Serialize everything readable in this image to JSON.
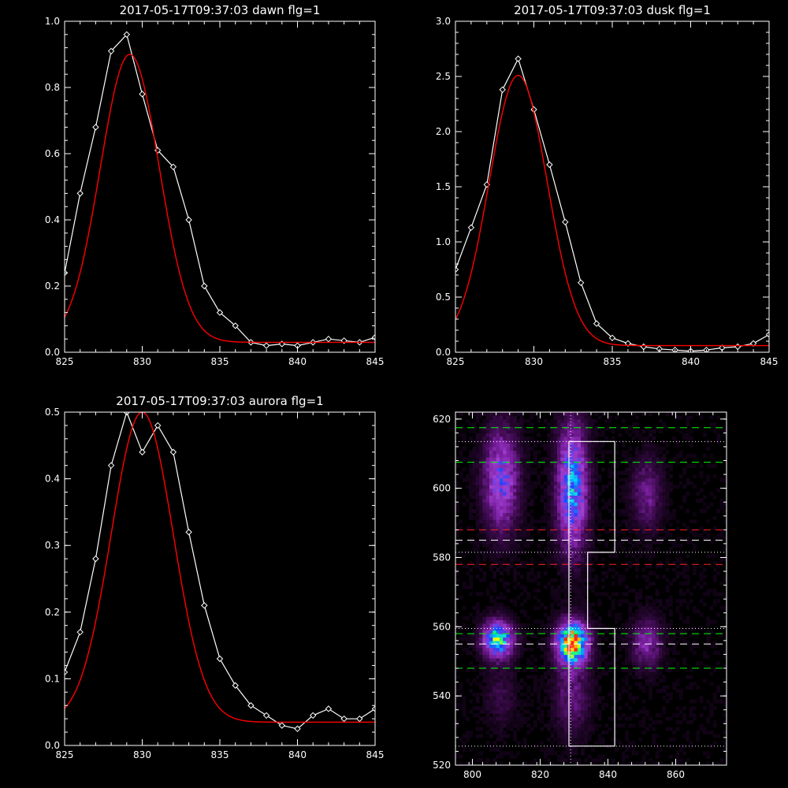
{
  "chart_data": [
    {
      "type": "line",
      "title": "2017-05-17T09:37:03 dawn flg=1",
      "xlim": [
        825,
        845
      ],
      "ylim": [
        0,
        1.0
      ],
      "x_ticks": [
        "825",
        "830",
        "835",
        "840",
        "845"
      ],
      "y_ticks": [
        "0.0",
        "0.2",
        "0.4",
        "0.6",
        "0.8",
        "1.0"
      ],
      "grid": false,
      "series": [
        {
          "style": "data-diamonds",
          "color": "#ffffff",
          "points": [
            [
              825,
              0.24
            ],
            [
              826,
              0.48
            ],
            [
              827,
              0.68
            ],
            [
              828,
              0.91
            ],
            [
              829,
              0.96
            ],
            [
              830,
              0.78
            ],
            [
              831,
              0.61
            ],
            [
              832,
              0.56
            ],
            [
              833,
              0.4
            ],
            [
              834,
              0.2
            ],
            [
              835,
              0.12
            ],
            [
              836,
              0.08
            ],
            [
              837,
              0.03
            ],
            [
              838,
              0.02
            ],
            [
              839,
              0.025
            ],
            [
              840,
              0.02
            ],
            [
              841,
              0.03
            ],
            [
              842,
              0.04
            ],
            [
              843,
              0.035
            ],
            [
              844,
              0.03
            ],
            [
              845,
              0.045
            ]
          ]
        },
        {
          "style": "fit",
          "color": "#ff0000",
          "gaussian": {
            "amp": 0.87,
            "center": 829.2,
            "sigma": 1.9,
            "offset": 0.03
          }
        }
      ]
    },
    {
      "type": "line",
      "title": "2017-05-17T09:37:03 dusk flg=1",
      "xlim": [
        825,
        845
      ],
      "ylim": [
        0,
        3.0
      ],
      "x_ticks": [
        "825",
        "830",
        "835",
        "840",
        "845"
      ],
      "y_ticks": [
        "0.0",
        "0.5",
        "1.0",
        "1.5",
        "2.0",
        "2.5",
        "3.0"
      ],
      "grid": false,
      "series": [
        {
          "style": "data-diamonds",
          "color": "#ffffff",
          "points": [
            [
              825,
              0.75
            ],
            [
              826,
              1.13
            ],
            [
              827,
              1.52
            ],
            [
              828,
              2.38
            ],
            [
              829,
              2.66
            ],
            [
              830,
              2.2
            ],
            [
              831,
              1.7
            ],
            [
              832,
              1.18
            ],
            [
              833,
              0.63
            ],
            [
              834,
              0.26
            ],
            [
              835,
              0.13
            ],
            [
              836,
              0.08
            ],
            [
              837,
              0.05
            ],
            [
              838,
              0.03
            ],
            [
              839,
              0.02
            ],
            [
              840,
              0.01
            ],
            [
              841,
              0.02
            ],
            [
              842,
              0.04
            ],
            [
              843,
              0.05
            ],
            [
              844,
              0.08
            ],
            [
              845,
              0.16
            ]
          ]
        },
        {
          "style": "fit",
          "color": "#ff0000",
          "gaussian": {
            "amp": 2.45,
            "center": 829.0,
            "sigma": 1.85,
            "offset": 0.06
          }
        }
      ]
    },
    {
      "type": "line",
      "title": "2017-05-17T09:37:03 aurora flg=1",
      "xlim": [
        825,
        845
      ],
      "ylim": [
        0,
        0.5
      ],
      "x_ticks": [
        "825",
        "830",
        "835",
        "840",
        "845"
      ],
      "y_ticks": [
        "0.0",
        "0.1",
        "0.2",
        "0.3",
        "0.4",
        "0.5"
      ],
      "grid": false,
      "series": [
        {
          "style": "data-diamonds",
          "color": "#ffffff",
          "points": [
            [
              825,
              0.11
            ],
            [
              826,
              0.17
            ],
            [
              827,
              0.28
            ],
            [
              828,
              0.42
            ],
            [
              829,
              0.5
            ],
            [
              830,
              0.44
            ],
            [
              831,
              0.48
            ],
            [
              832,
              0.44
            ],
            [
              833,
              0.32
            ],
            [
              834,
              0.21
            ],
            [
              835,
              0.13
            ],
            [
              836,
              0.09
            ],
            [
              837,
              0.06
            ],
            [
              838,
              0.045
            ],
            [
              839,
              0.03
            ],
            [
              840,
              0.025
            ],
            [
              841,
              0.045
            ],
            [
              842,
              0.055
            ],
            [
              843,
              0.04
            ],
            [
              844,
              0.04
            ],
            [
              845,
              0.055
            ]
          ]
        },
        {
          "style": "fit",
          "color": "#ff0000",
          "gaussian": {
            "amp": 0.465,
            "center": 830.0,
            "sigma": 2.0,
            "offset": 0.035
          }
        }
      ]
    },
    {
      "type": "heatmap",
      "title": "",
      "xlim": [
        795,
        875
      ],
      "ylim": [
        520,
        622
      ],
      "x_ticks": [
        "800",
        "820",
        "840",
        "860"
      ],
      "y_ticks": [
        "520",
        "540",
        "560",
        "580",
        "600",
        "620"
      ],
      "colormap": [
        "#000000",
        "#3a0a4a",
        "#7a1fa0",
        "#a040d0",
        "#2040ff",
        "#00ccff",
        "#30ff60",
        "#ffff00",
        "#ff2020"
      ],
      "blobs": [
        {
          "x": 807,
          "y": 556,
          "sx": 3.0,
          "sy": 3.5,
          "amp": 0.7
        },
        {
          "x": 829,
          "y": 555,
          "sx": 3.0,
          "sy": 4.0,
          "amp": 1.0
        },
        {
          "x": 829,
          "y": 600,
          "sx": 3.0,
          "sy": 12.0,
          "amp": 0.55
        },
        {
          "x": 808,
          "y": 602,
          "sx": 3.5,
          "sy": 10.0,
          "amp": 0.4
        },
        {
          "x": 851,
          "y": 555,
          "sx": 3.0,
          "sy": 5.0,
          "amp": 0.25
        },
        {
          "x": 851,
          "y": 598,
          "sx": 3.0,
          "sy": 7.0,
          "amp": 0.2
        },
        {
          "x": 829,
          "y": 540,
          "sx": 3.5,
          "sy": 8.0,
          "amp": 0.18
        },
        {
          "x": 808,
          "y": 540,
          "sx": 3.0,
          "sy": 6.0,
          "amp": 0.1
        }
      ],
      "hlines": [
        {
          "y": 617.5,
          "color": "#00ff00",
          "style": "dashed"
        },
        {
          "y": 607.5,
          "color": "#00ff00",
          "style": "dashed"
        },
        {
          "y": 558.0,
          "color": "#00ff00",
          "style": "dashed"
        },
        {
          "y": 548.0,
          "color": "#00ff00",
          "style": "dashed"
        },
        {
          "y": 588.0,
          "color": "#ff2020",
          "style": "dashed"
        },
        {
          "y": 578.0,
          "color": "#ff2020",
          "style": "dashed"
        },
        {
          "y": 585.0,
          "color": "#ffffff",
          "style": "dashed"
        },
        {
          "y": 555.0,
          "color": "#ffffff",
          "style": "dashed"
        },
        {
          "y": 613.5,
          "color": "#ffffff",
          "style": "dotted"
        },
        {
          "y": 581.5,
          "color": "#ffffff",
          "style": "dotted"
        },
        {
          "y": 559.5,
          "color": "#ffffff",
          "style": "dotted"
        },
        {
          "y": 525.5,
          "color": "#ffffff",
          "style": "dotted"
        }
      ],
      "vlines": [
        {
          "x": 829.0,
          "color": "#ffffff",
          "style": "dotted"
        }
      ],
      "outline": [
        [
          828.5,
          613.5
        ],
        [
          842,
          613.5
        ],
        [
          842,
          581.5
        ],
        [
          834,
          581.5
        ],
        [
          834,
          559.5
        ],
        [
          842,
          559.5
        ],
        [
          842,
          525.5
        ],
        [
          828.5,
          525.5
        ],
        [
          828.5,
          613.5
        ]
      ]
    }
  ]
}
